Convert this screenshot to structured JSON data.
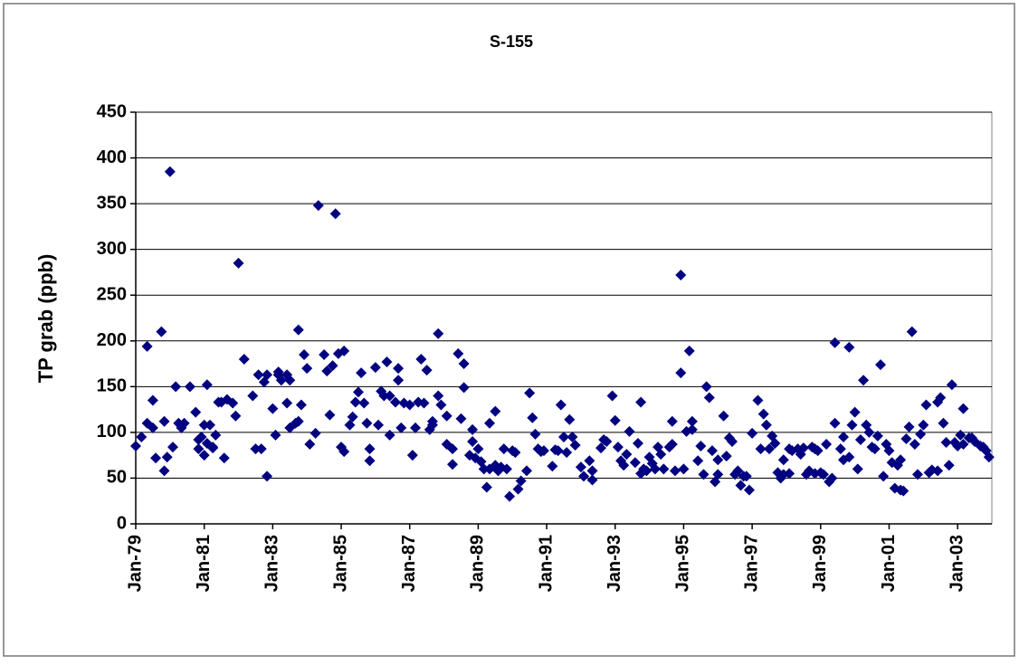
{
  "chart_data": {
    "type": "scatter",
    "title": "S-155",
    "y_label": "TP grab (ppb)",
    "color": "#000080",
    "grid": true,
    "xlim": [
      "Jan-79",
      "Jan-04"
    ],
    "xticks": [
      "Jan-79",
      "Jan-81",
      "Jan-83",
      "Jan-85",
      "Jan-87",
      "Jan-89",
      "Jan-91",
      "Jan-93",
      "Jan-95",
      "Jan-97",
      "Jan-99",
      "Jan-01",
      "Jan-03"
    ],
    "ylim": [
      0,
      450
    ],
    "yticks": [
      0,
      50,
      100,
      150,
      200,
      250,
      300,
      350,
      400,
      450
    ],
    "x": [
      "Jan-79",
      "Mar-79",
      "May-79",
      "May-79",
      "Jul-79",
      "Jul-79",
      "Aug-79",
      "Oct-79",
      "Nov-79",
      "Nov-79",
      "Dec-79",
      "Jan-80",
      "Feb-80",
      "Mar-80",
      "Apr-80",
      "May-80",
      "Jun-80",
      "Aug-80",
      "Oct-80",
      "Nov-80",
      "Nov-80",
      "Dec-80",
      "Jan-81",
      "Jan-81",
      "Feb-81",
      "Feb-81",
      "Mar-81",
      "Apr-81",
      "Apr-81",
      "May-81",
      "Jun-81",
      "Jul-81",
      "Aug-81",
      "Sep-81",
      "Nov-81",
      "Dec-81",
      "Jan-82",
      "Mar-82",
      "Jun-82",
      "Jul-82",
      "Aug-82",
      "Sep-82",
      "Oct-82",
      "Nov-82",
      "Nov-82",
      "Jan-83",
      "Feb-83",
      "Mar-83",
      "Mar-83",
      "Apr-83",
      "Jun-83",
      "Jun-83",
      "Jul-83",
      "Jul-83",
      "Sep-83",
      "Oct-83",
      "Oct-83",
      "Nov-83",
      "Dec-83",
      "Jan-84",
      "Feb-84",
      "Apr-84",
      "May-84",
      "Jul-84",
      "Aug-84",
      "Sep-84",
      "Oct-84",
      "Nov-84",
      "Dec-84",
      "Jan-85",
      "Feb-85",
      "Feb-85",
      "Apr-85",
      "May-85",
      "Jun-85",
      "Jul-85",
      "Aug-85",
      "Sep-85",
      "Oct-85",
      "Nov-85",
      "Nov-85",
      "Jan-86",
      "Feb-86",
      "Mar-86",
      "Apr-86",
      "May-86",
      "Jun-86",
      "Jun-86",
      "Aug-86",
      "Sep-86",
      "Sep-86",
      "Oct-86",
      "Nov-86",
      "Jan-87",
      "Feb-87",
      "Mar-87",
      "Apr-87",
      "May-87",
      "Jun-87",
      "Jul-87",
      "Aug-87",
      "Sep-87",
      "Sep-87",
      "Nov-87",
      "Nov-87",
      "Dec-87",
      "Feb-88",
      "Feb-88",
      "Apr-88",
      "Apr-88",
      "Jun-88",
      "Jul-88",
      "Aug-88",
      "Aug-88",
      "Oct-88",
      "Nov-88",
      "Nov-88",
      "Dec-88",
      "Jan-89",
      "Feb-89",
      "Mar-89",
      "Apr-89",
      "May-89",
      "May-89",
      "Jul-89",
      "Jul-89",
      "Aug-89",
      "Sep-89",
      "Oct-89",
      "Nov-89",
      "Dec-89",
      "Jan-90",
      "Feb-90",
      "Mar-90",
      "Apr-90",
      "Jun-90",
      "Jul-90",
      "Aug-90",
      "Sep-90",
      "Oct-90",
      "Nov-90",
      "Dec-90",
      "Mar-91",
      "Apr-91",
      "May-91",
      "Jun-91",
      "Jul-91",
      "Aug-91",
      "Sep-91",
      "Oct-91",
      "Nov-91",
      "Jan-92",
      "Feb-92",
      "Apr-92",
      "May-92",
      "May-92",
      "Aug-92",
      "Sep-92",
      "Oct-92",
      "Dec-92",
      "Jan-93",
      "Feb-93",
      "Mar-93",
      "Apr-93",
      "May-93",
      "Jun-93",
      "Aug-93",
      "Sep-93",
      "Oct-93",
      "Oct-93",
      "Nov-93",
      "Dec-93",
      "Jan-94",
      "Feb-94",
      "Mar-94",
      "Apr-94",
      "May-94",
      "Jun-94",
      "Aug-94",
      "Sep-94",
      "Sep-94",
      "Oct-94",
      "Dec-94",
      "Dec-94",
      "Jan-95",
      "Feb-95",
      "Mar-95",
      "Apr-95",
      "Apr-95",
      "Jun-95",
      "Jul-95",
      "Aug-95",
      "Sep-95",
      "Oct-95",
      "Nov-95",
      "Dec-95",
      "Jan-96",
      "Jan-96",
      "Mar-96",
      "Apr-96",
      "May-96",
      "Jun-96",
      "Jul-96",
      "Aug-96",
      "Sep-96",
      "Oct-96",
      "Nov-96",
      "Dec-96",
      "Jan-97",
      "Mar-97",
      "Apr-97",
      "May-97",
      "Jun-97",
      "Jul-97",
      "Aug-97",
      "Sep-97",
      "Oct-97",
      "Nov-97",
      "Dec-97",
      "Dec-97",
      "Feb-98",
      "Feb-98",
      "Mar-98",
      "May-98",
      "Jun-98",
      "Jul-98",
      "Aug-98",
      "Sep-98",
      "Oct-98",
      "Nov-98",
      "Nov-98",
      "Dec-98",
      "Jan-99",
      "Feb-99",
      "Mar-99",
      "Apr-99",
      "May-99",
      "Jun-99",
      "Jun-99",
      "Aug-99",
      "Sep-99",
      "Sep-99",
      "Nov-99",
      "Nov-99",
      "Dec-99",
      "Jan-00",
      "Feb-00",
      "Mar-00",
      "Apr-00",
      "May-00",
      "Jun-00",
      "Jul-00",
      "Aug-00",
      "Sep-00",
      "Oct-00",
      "Nov-00",
      "Dec-00",
      "Jan-01",
      "Feb-01",
      "Mar-01",
      "Apr-01",
      "May-01",
      "May-01",
      "Jun-01",
      "Jul-01",
      "Aug-01",
      "Sep-01",
      "Oct-01",
      "Nov-01",
      "Dec-01",
      "Jan-02",
      "Feb-02",
      "Mar-02",
      "Apr-02",
      "Jun-02",
      "Jun-02",
      "Jul-02",
      "Aug-02",
      "Sep-02",
      "Oct-02",
      "Nov-02",
      "Dec-02",
      "Jan-03",
      "Feb-03",
      "Mar-03",
      "Mar-03",
      "May-03",
      "Jun-03",
      "Jul-03",
      "Sep-03",
      "Oct-03",
      "Nov-03",
      "Dec-03"
    ],
    "values": [
      85,
      95,
      194,
      110,
      105,
      135,
      72,
      210,
      112,
      58,
      73,
      385,
      84,
      150,
      110,
      105,
      110,
      150,
      122,
      92,
      82,
      95,
      75,
      108,
      88,
      152,
      108,
      84,
      83,
      97,
      133,
      133,
      72,
      136,
      132,
      118,
      285,
      180,
      140,
      82,
      163,
      82,
      155,
      163,
      52,
      126,
      97,
      163,
      166,
      157,
      163,
      132,
      105,
      157,
      110,
      112,
      212,
      130,
      185,
      170,
      87,
      99,
      348,
      185,
      167,
      119,
      173,
      339,
      186,
      84,
      189,
      79,
      108,
      117,
      133,
      144,
      165,
      132,
      110,
      69,
      82,
      171,
      108,
      145,
      140,
      177,
      97,
      140,
      133,
      170,
      157,
      105,
      132,
      130,
      75,
      105,
      133,
      180,
      132,
      168,
      103,
      112,
      108,
      208,
      140,
      130,
      87,
      118,
      65,
      82,
      186,
      115,
      175,
      149,
      75,
      103,
      90,
      72,
      82,
      68,
      60,
      40,
      110,
      60,
      123,
      64,
      58,
      62,
      82,
      60,
      30,
      80,
      78,
      38,
      47,
      58,
      143,
      116,
      98,
      82,
      79,
      80,
      63,
      81,
      80,
      130,
      95,
      78,
      114,
      95,
      86,
      62,
      52,
      69,
      58,
      48,
      83,
      92,
      90,
      140,
      113,
      84,
      69,
      64,
      76,
      101,
      67,
      88,
      55,
      133,
      60,
      58,
      73,
      66,
      60,
      84,
      76,
      60,
      84,
      112,
      87,
      58,
      165,
      272,
      60,
      101,
      189,
      112,
      103,
      69,
      85,
      54,
      150,
      138,
      80,
      46,
      54,
      70,
      118,
      74,
      94,
      90,
      54,
      58,
      42,
      52,
      52,
      37,
      99,
      135,
      82,
      120,
      108,
      82,
      96,
      88,
      56,
      50,
      54,
      70,
      55,
      82,
      80,
      82,
      76,
      83,
      54,
      58,
      84,
      55,
      82,
      80,
      56,
      54,
      87,
      46,
      50,
      110,
      198,
      82,
      70,
      95,
      193,
      73,
      108,
      122,
      60,
      92,
      157,
      108,
      100,
      84,
      82,
      96,
      174,
      52,
      87,
      80,
      67,
      39,
      64,
      70,
      37,
      36,
      93,
      106,
      210,
      87,
      54,
      98,
      108,
      130,
      56,
      59,
      58,
      133,
      138,
      110,
      89,
      64,
      152,
      89,
      85,
      97,
      126,
      87,
      94,
      94,
      90,
      85,
      84,
      80,
      73
    ]
  }
}
